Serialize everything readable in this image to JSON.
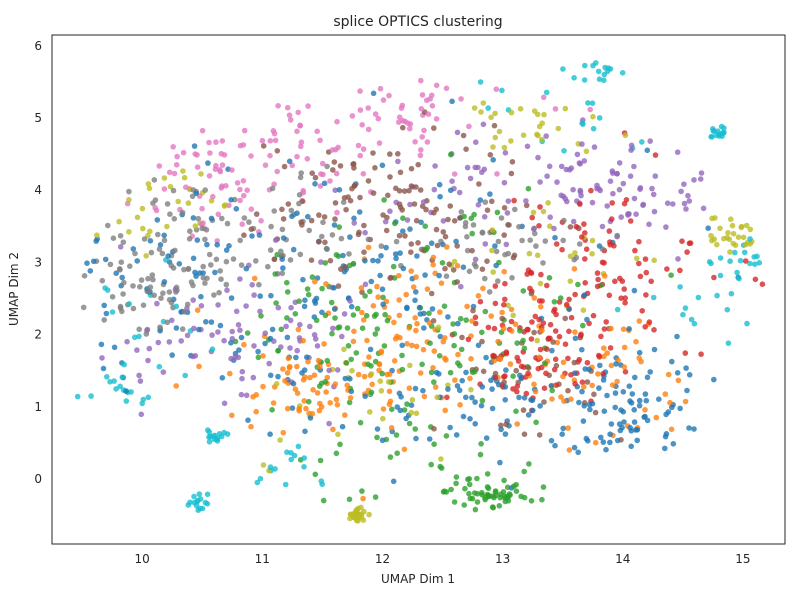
{
  "chart_data": {
    "type": "scatter",
    "title": "splice OPTICS clustering",
    "xlabel": "UMAP Dim 1",
    "ylabel": "UMAP Dim 2",
    "xlim": [
      9.25,
      15.35
    ],
    "ylim": [
      -0.9,
      6.15
    ],
    "xticks": [
      10,
      11,
      12,
      13,
      14,
      15
    ],
    "yticks": [
      0,
      1,
      2,
      3,
      4,
      5,
      6
    ],
    "grid": false,
    "legend": "none",
    "marker_opacity": 0.8,
    "palette": [
      "#1f77b4",
      "#ff7f0e",
      "#2ca02c",
      "#d62728",
      "#9467bd",
      "#8c564b",
      "#e377c2",
      "#7f7f7f",
      "#bcbd22",
      "#17becf"
    ],
    "clusters": [
      {
        "color": "#1f77b4",
        "count": 360,
        "regions": [
          {
            "cx": 13.0,
            "cy": 1.0,
            "sx": 0.75,
            "sy": 0.45
          },
          {
            "cx": 11.7,
            "cy": 2.9,
            "sx": 0.6,
            "sy": 0.9
          },
          {
            "cx": 12.6,
            "cy": 2.2,
            "sx": 1.4,
            "sy": 1.2
          },
          {
            "cx": 10.2,
            "cy": 3.0,
            "sx": 0.5,
            "sy": 0.9
          },
          {
            "cx": 14.1,
            "cy": 1.0,
            "sx": 0.35,
            "sy": 0.4
          }
        ]
      },
      {
        "color": "#ff7f0e",
        "count": 230,
        "regions": [
          {
            "cx": 11.95,
            "cy": 1.7,
            "sx": 0.55,
            "sy": 0.6
          },
          {
            "cx": 12.55,
            "cy": 2.3,
            "sx": 0.45,
            "sy": 0.5
          },
          {
            "cx": 11.3,
            "cy": 1.3,
            "sx": 0.35,
            "sy": 0.35
          },
          {
            "cx": 13.9,
            "cy": 1.4,
            "sx": 0.45,
            "sy": 0.5
          }
        ]
      },
      {
        "color": "#2ca02c",
        "count": 230,
        "regions": [
          {
            "cx": 12.7,
            "cy": 2.6,
            "sx": 0.6,
            "sy": 0.8
          },
          {
            "cx": 12.3,
            "cy": 0.8,
            "sx": 0.6,
            "sy": 0.6
          },
          {
            "cx": 12.9,
            "cy": -0.2,
            "sx": 0.2,
            "sy": 0.12
          },
          {
            "cx": 11.7,
            "cy": 2.2,
            "sx": 0.4,
            "sy": 0.5
          }
        ]
      },
      {
        "color": "#d62728",
        "count": 180,
        "regions": [
          {
            "cx": 13.85,
            "cy": 3.1,
            "sx": 0.45,
            "sy": 0.6
          },
          {
            "cx": 13.6,
            "cy": 2.3,
            "sx": 0.45,
            "sy": 0.55
          },
          {
            "cx": 13.2,
            "cy": 1.6,
            "sx": 0.3,
            "sy": 0.35
          }
        ]
      },
      {
        "color": "#9467bd",
        "count": 210,
        "regions": [
          {
            "cx": 14.2,
            "cy": 4.0,
            "sx": 0.45,
            "sy": 0.35
          },
          {
            "cx": 13.55,
            "cy": 4.3,
            "sx": 0.5,
            "sy": 0.3
          },
          {
            "cx": 10.5,
            "cy": 2.1,
            "sx": 0.6,
            "sy": 0.5
          },
          {
            "cx": 11.2,
            "cy": 1.8,
            "sx": 0.35,
            "sy": 0.4
          },
          {
            "cx": 12.7,
            "cy": 3.8,
            "sx": 0.6,
            "sy": 0.5
          }
        ]
      },
      {
        "color": "#8c564b",
        "count": 170,
        "regions": [
          {
            "cx": 12.1,
            "cy": 4.1,
            "sx": 0.55,
            "sy": 0.5
          },
          {
            "cx": 11.5,
            "cy": 3.6,
            "sx": 0.4,
            "sy": 0.45
          },
          {
            "cx": 12.6,
            "cy": 3.4,
            "sx": 0.5,
            "sy": 0.45
          },
          {
            "cx": 13.3,
            "cy": 1.4,
            "sx": 0.45,
            "sy": 0.5
          }
        ]
      },
      {
        "color": "#e377c2",
        "count": 150,
        "regions": [
          {
            "cx": 11.2,
            "cy": 4.55,
            "sx": 0.65,
            "sy": 0.4
          },
          {
            "cx": 12.2,
            "cy": 5.0,
            "sx": 0.5,
            "sy": 0.3
          },
          {
            "cx": 10.6,
            "cy": 4.1,
            "sx": 0.3,
            "sy": 0.35
          }
        ]
      },
      {
        "color": "#7f7f7f",
        "count": 190,
        "regions": [
          {
            "cx": 10.3,
            "cy": 3.2,
            "sx": 0.45,
            "sy": 0.5
          },
          {
            "cx": 11.0,
            "cy": 3.5,
            "sx": 0.45,
            "sy": 0.45
          },
          {
            "cx": 12.9,
            "cy": 3.2,
            "sx": 0.45,
            "sy": 0.4
          },
          {
            "cx": 10.0,
            "cy": 2.6,
            "sx": 0.3,
            "sy": 0.3
          }
        ]
      },
      {
        "color": "#bcbd22",
        "count": 160,
        "regions": [
          {
            "cx": 10.1,
            "cy": 3.8,
            "sx": 0.4,
            "sy": 0.35
          },
          {
            "cx": 13.2,
            "cy": 4.9,
            "sx": 0.35,
            "sy": 0.25
          },
          {
            "cx": 14.9,
            "cy": 3.4,
            "sx": 0.15,
            "sy": 0.15
          },
          {
            "cx": 13.3,
            "cy": 2.8,
            "sx": 0.5,
            "sy": 0.6
          },
          {
            "cx": 12.0,
            "cy": 1.0,
            "sx": 0.5,
            "sy": 0.5
          },
          {
            "cx": 11.8,
            "cy": -0.5,
            "sx": 0.05,
            "sy": 0.05
          }
        ]
      },
      {
        "color": "#17becf",
        "count": 150,
        "regions": [
          {
            "cx": 13.8,
            "cy": 5.65,
            "sx": 0.12,
            "sy": 0.08
          },
          {
            "cx": 14.8,
            "cy": 4.8,
            "sx": 0.05,
            "sy": 0.05
          },
          {
            "cx": 15.1,
            "cy": 3.0,
            "sx": 0.15,
            "sy": 0.15
          },
          {
            "cx": 9.7,
            "cy": 1.1,
            "sx": 0.15,
            "sy": 0.15
          },
          {
            "cx": 10.45,
            "cy": -0.35,
            "sx": 0.05,
            "sy": 0.05
          },
          {
            "cx": 10.6,
            "cy": 0.6,
            "sx": 0.05,
            "sy": 0.05
          },
          {
            "cx": 14.7,
            "cy": 2.3,
            "sx": 0.3,
            "sy": 0.4
          },
          {
            "cx": 13.9,
            "cy": 5.1,
            "sx": 0.4,
            "sy": 0.3
          },
          {
            "cx": 9.9,
            "cy": 2.0,
            "sx": 0.3,
            "sy": 0.4
          },
          {
            "cx": 11.3,
            "cy": 0.2,
            "sx": 0.15,
            "sy": 0.15
          }
        ]
      }
    ]
  }
}
